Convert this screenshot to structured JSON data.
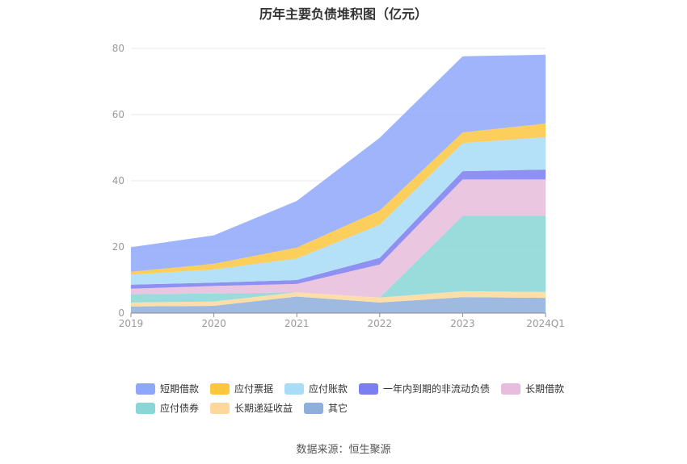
{
  "title": "历年主要负债堆积图（亿元）",
  "source": "数据来源：恒生聚源",
  "chart_data": {
    "type": "area",
    "stacked": true,
    "categories": [
      "2019",
      "2020",
      "2021",
      "2022",
      "2023",
      "2024Q1"
    ],
    "ylim": [
      0,
      80
    ],
    "yticks": [
      0,
      20,
      40,
      60,
      80
    ],
    "grid": true,
    "legend_position": "bottom",
    "series": [
      {
        "name": "其它",
        "color": "#8eaedb",
        "values": [
          2.0,
          2.2,
          5.0,
          3.2,
          4.8,
          4.6
        ]
      },
      {
        "name": "长期递延收益",
        "color": "#fdd89a",
        "values": [
          1.2,
          1.3,
          1.3,
          1.5,
          1.8,
          1.8
        ]
      },
      {
        "name": "应付债券",
        "color": "#88d6d6",
        "values": [
          2.5,
          2.4,
          0.0,
          0.0,
          22.8,
          23.0
        ]
      },
      {
        "name": "长期借款",
        "color": "#e8bcdc",
        "values": [
          1.7,
          2.3,
          2.5,
          10.0,
          11.0,
          11.0
        ]
      },
      {
        "name": "一年内到期的非流动负债",
        "color": "#7b7ef0",
        "values": [
          1.2,
          1.0,
          1.2,
          2.0,
          2.5,
          3.0
        ]
      },
      {
        "name": "应付账款",
        "color": "#a8dcf7",
        "values": [
          3.0,
          4.0,
          6.5,
          10.0,
          8.5,
          9.8
        ]
      },
      {
        "name": "应付票据",
        "color": "#fcc63e",
        "values": [
          0.9,
          1.7,
          3.3,
          4.3,
          3.2,
          4.1
        ]
      },
      {
        "name": "短期借款",
        "color": "#8fa7fa",
        "values": [
          7.4,
          8.6,
          14.1,
          22.0,
          23.0,
          20.8
        ]
      }
    ],
    "legend_order": [
      "短期借款",
      "应付票据",
      "应付账款",
      "一年内到期的非流动负债",
      "长期借款",
      "应付债券",
      "长期递延收益",
      "其它"
    ]
  }
}
